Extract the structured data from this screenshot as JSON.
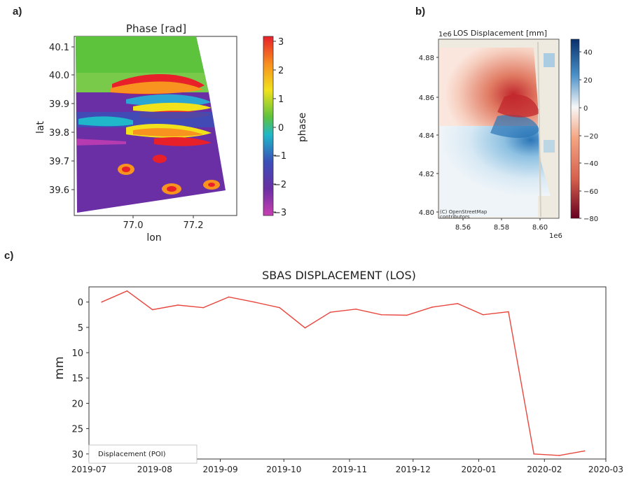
{
  "panels": {
    "a": {
      "label": "a)",
      "title": "Phase [rad]",
      "xlabel": "lon",
      "ylabel": "lat",
      "xticks": [
        "77.0",
        "77.2"
      ],
      "yticks": [
        "40.1",
        "40.0",
        "39.9",
        "39.8",
        "39.7",
        "39.6"
      ],
      "colorbar_label": "phase",
      "colorbar_ticks": [
        "3",
        "2",
        "1",
        "0",
        "−1",
        "−2",
        "−3"
      ]
    },
    "b": {
      "label": "b)",
      "title": "LOS Displacement [mm]",
      "y_offset": "1e6",
      "x_offset": "1e6",
      "yticks": [
        "4.88",
        "4.86",
        "4.84",
        "4.82",
        "4.80"
      ],
      "xticks": [
        "8.56",
        "8.58",
        "8.60"
      ],
      "colorbar_ticks": [
        "40",
        "20",
        "0",
        "−20",
        "−40",
        "−60",
        "−80"
      ],
      "attribution_line1": "(C) OpenStreetMap",
      "attribution_line2": "contributors"
    },
    "c": {
      "label": "c)"
    }
  },
  "chart_data": {
    "type": "line",
    "title": "SBAS DISPLACEMENT (LOS)",
    "xlabel": "",
    "ylabel": "mm",
    "ylim": [
      31,
      -3
    ],
    "y_inverted": true,
    "yticks": [
      0,
      5,
      10,
      15,
      20,
      25,
      30
    ],
    "xlim": [
      "2019-07-01",
      "2020-03-01"
    ],
    "xticks": [
      "2019-07",
      "2019-08",
      "2019-09",
      "2019-10",
      "2019-11",
      "2019-12",
      "2020-01",
      "2020-02",
      "2020-03"
    ],
    "legend": "Displacement (POI)",
    "legend_position": "bottom-left",
    "series": [
      {
        "name": "Displacement (POI)",
        "color": "#e8473e",
        "points": [
          {
            "x": "2019-07-07",
            "y": 0.0
          },
          {
            "x": "2019-07-19",
            "y": -2.2
          },
          {
            "x": "2019-07-31",
            "y": 1.5
          },
          {
            "x": "2019-08-12",
            "y": 0.6
          },
          {
            "x": "2019-08-24",
            "y": 1.1
          },
          {
            "x": "2019-09-05",
            "y": -1.0
          },
          {
            "x": "2019-09-17",
            "y": 0.0
          },
          {
            "x": "2019-09-29",
            "y": 1.1
          },
          {
            "x": "2019-10-11",
            "y": 5.1
          },
          {
            "x": "2019-10-23",
            "y": 2.0
          },
          {
            "x": "2019-11-04",
            "y": 1.4
          },
          {
            "x": "2019-11-16",
            "y": 2.5
          },
          {
            "x": "2019-11-28",
            "y": 2.6
          },
          {
            "x": "2019-12-10",
            "y": 1.0
          },
          {
            "x": "2019-12-22",
            "y": 0.3
          },
          {
            "x": "2020-01-03",
            "y": 2.5
          },
          {
            "x": "2020-01-15",
            "y": 1.9
          },
          {
            "x": "2020-01-27",
            "y": 30.0
          },
          {
            "x": "2020-02-08",
            "y": 30.3
          },
          {
            "x": "2020-02-20",
            "y": 29.4
          }
        ]
      }
    ]
  }
}
